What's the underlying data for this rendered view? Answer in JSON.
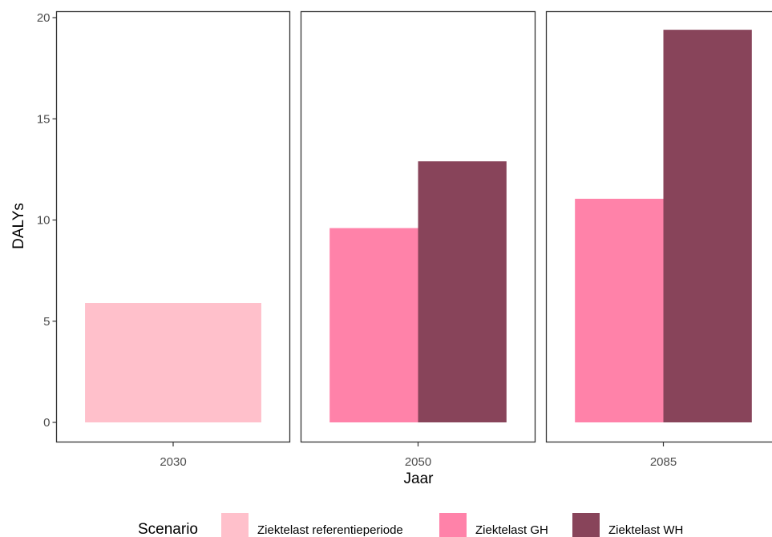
{
  "chart_data": {
    "type": "bar",
    "layout": "faceted",
    "ylabel": "DALYs",
    "xlabel": "Jaar",
    "ylim": [
      0,
      21
    ],
    "yticks": [
      0,
      5,
      10,
      15,
      20
    ],
    "grid": false,
    "legend_position": "bottom",
    "legend_title": "Scenario",
    "scenarios": [
      {
        "name": "Ziektelast referentieperiode",
        "color": "#ffc0cb"
      },
      {
        "name": "Ziektelast GH",
        "color": "#ff82a9"
      },
      {
        "name": "Ziektelast WH",
        "color": "#88445a"
      }
    ],
    "panels": [
      {
        "label": "2030",
        "bars": [
          {
            "scenario": "Ziektelast referentieperiode",
            "value": 5.9
          }
        ]
      },
      {
        "label": "2050",
        "bars": [
          {
            "scenario": "Ziektelast GH",
            "value": 9.6
          },
          {
            "scenario": "Ziektelast WH",
            "value": 12.9
          }
        ]
      },
      {
        "label": "2085",
        "bars": [
          {
            "scenario": "Ziektelast GH",
            "value": 11.05
          },
          {
            "scenario": "Ziektelast WH",
            "value": 19.4
          }
        ]
      }
    ]
  }
}
